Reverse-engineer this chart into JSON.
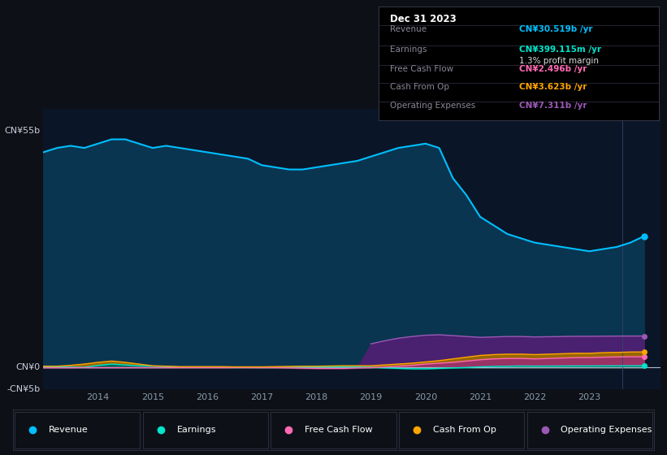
{
  "bg_color": "#0d1117",
  "plot_bg_color": "#0a1628",
  "grid_color": "#1a3050",
  "ylabel_top": "CN¥55b",
  "ylabel_zero": "CN¥0",
  "ylabel_neg": "-CN¥5b",
  "ylim": [
    -5000000000.0,
    60000000000.0
  ],
  "years": [
    2013.0,
    2013.25,
    2013.5,
    2013.75,
    2014.0,
    2014.25,
    2014.5,
    2014.75,
    2015.0,
    2015.25,
    2015.5,
    2015.75,
    2016.0,
    2016.25,
    2016.5,
    2016.75,
    2017.0,
    2017.25,
    2017.5,
    2017.75,
    2018.0,
    2018.25,
    2018.5,
    2018.75,
    2019.0,
    2019.25,
    2019.5,
    2019.75,
    2020.0,
    2020.25,
    2020.5,
    2020.75,
    2021.0,
    2021.25,
    2021.5,
    2021.75,
    2022.0,
    2022.25,
    2022.5,
    2022.75,
    2023.0,
    2023.25,
    2023.5,
    2023.75,
    2024.0
  ],
  "revenue": [
    50000000000.0,
    51000000000.0,
    51500000000.0,
    51000000000.0,
    52000000000.0,
    53000000000.0,
    53000000000.0,
    52000000000.0,
    51000000000.0,
    51500000000.0,
    51000000000.0,
    50500000000.0,
    50000000000.0,
    49500000000.0,
    49000000000.0,
    48500000000.0,
    47000000000.0,
    46500000000.0,
    46000000000.0,
    46000000000.0,
    46500000000.0,
    47000000000.0,
    47500000000.0,
    48000000000.0,
    49000000000.0,
    50000000000.0,
    51000000000.0,
    51500000000.0,
    52000000000.0,
    51000000000.0,
    44000000000.0,
    40000000000.0,
    35000000000.0,
    33000000000.0,
    31000000000.0,
    30000000000.0,
    29000000000.0,
    28500000000.0,
    28000000000.0,
    27500000000.0,
    27000000000.0,
    27500000000.0,
    28000000000.0,
    29000000000.0,
    30500000000.0
  ],
  "earnings": [
    200000000.0,
    150000000.0,
    100000000.0,
    50000000.0,
    500000000.0,
    800000000.0,
    600000000.0,
    400000000.0,
    300000000.0,
    200000000.0,
    100000000.0,
    80000000.0,
    100000000.0,
    100000000.0,
    50000000.0,
    50000000.0,
    50000000.0,
    50000000.0,
    50000000.0,
    100000000.0,
    100000000.0,
    100000000.0,
    100000000.0,
    100000000.0,
    50000000.0,
    -100000000.0,
    -200000000.0,
    -300000000.0,
    -300000000.0,
    -200000000.0,
    -100000000.0,
    0.0,
    150000000.0,
    250000000.0,
    300000000.0,
    350000000.0,
    320000000.0,
    330000000.0,
    350000000.0,
    360000000.0,
    360000000.0,
    380000000.0,
    390000000.0,
    400000000.0,
    400000000.0
  ],
  "free_cash_flow": [
    -50000000.0,
    -50000000.0,
    -50000000.0,
    -30000000.0,
    -30000000.0,
    -30000000.0,
    -30000000.0,
    -30000000.0,
    -30000000.0,
    -30000000.0,
    -30000000.0,
    -30000000.0,
    -30000000.0,
    -30000000.0,
    -30000000.0,
    -30000000.0,
    -50000000.0,
    -50000000.0,
    -100000000.0,
    -150000000.0,
    -200000000.0,
    -200000000.0,
    -200000000.0,
    -100000000.0,
    -50000000.0,
    100000000.0,
    300000000.0,
    500000000.0,
    800000000.0,
    1000000000.0,
    1200000000.0,
    1500000000.0,
    1800000000.0,
    2000000000.0,
    2100000000.0,
    2100000000.0,
    2000000000.0,
    2100000000.0,
    2200000000.0,
    2300000000.0,
    2300000000.0,
    2400000000.0,
    2450000000.0,
    2500000000.0,
    2500000000.0
  ],
  "cash_from_op": [
    300000000.0,
    300000000.0,
    500000000.0,
    800000000.0,
    1200000000.0,
    1500000000.0,
    1200000000.0,
    800000000.0,
    400000000.0,
    300000000.0,
    200000000.0,
    200000000.0,
    200000000.0,
    200000000.0,
    150000000.0,
    150000000.0,
    150000000.0,
    200000000.0,
    250000000.0,
    300000000.0,
    300000000.0,
    350000000.0,
    400000000.0,
    400000000.0,
    400000000.0,
    600000000.0,
    800000000.0,
    1000000000.0,
    1300000000.0,
    1600000000.0,
    2000000000.0,
    2400000000.0,
    2800000000.0,
    3000000000.0,
    3100000000.0,
    3100000000.0,
    3000000000.0,
    3100000000.0,
    3200000000.0,
    3300000000.0,
    3300000000.0,
    3450000000.0,
    3500000000.0,
    3600000000.0,
    3620000000.0
  ],
  "operating_expenses": [
    0.0,
    0.0,
    0.0,
    0.0,
    0.0,
    0.0,
    0.0,
    0.0,
    0.0,
    0.0,
    0.0,
    0.0,
    0.0,
    0.0,
    0.0,
    0.0,
    0.0,
    0.0,
    0.0,
    0.0,
    0.0,
    0.0,
    0.0,
    0.0,
    5500000000.0,
    6200000000.0,
    6800000000.0,
    7200000000.0,
    7500000000.0,
    7600000000.0,
    7400000000.0,
    7200000000.0,
    7000000000.0,
    7100000000.0,
    7200000000.0,
    7200000000.0,
    7100000000.0,
    7150000000.0,
    7200000000.0,
    7250000000.0,
    7250000000.0,
    7280000000.0,
    7300000000.0,
    7310000000.0,
    7310000000.0
  ],
  "revenue_color": "#00bfff",
  "revenue_fill": "#0a3550",
  "earnings_color": "#00e5cc",
  "earnings_fill": "#006655",
  "free_cash_flow_color": "#ff69b4",
  "free_cash_flow_fill": "#993366",
  "cash_from_op_color": "#ffa500",
  "cash_from_op_fill": "#996600",
  "operating_expenses_color": "#9b59b6",
  "operating_expenses_fill": "#4a2070",
  "legend_items": [
    {
      "label": "Revenue",
      "color": "#00bfff"
    },
    {
      "label": "Earnings",
      "color": "#00e5cc"
    },
    {
      "label": "Free Cash Flow",
      "color": "#ff69b4"
    },
    {
      "label": "Cash From Op",
      "color": "#ffa500"
    },
    {
      "label": "Operating Expenses",
      "color": "#9b59b6"
    }
  ],
  "xtick_labels": [
    "2014",
    "2015",
    "2016",
    "2017",
    "2018",
    "2019",
    "2020",
    "2021",
    "2022",
    "2023"
  ],
  "xtick_positions": [
    2014,
    2015,
    2016,
    2017,
    2018,
    2019,
    2020,
    2021,
    2022,
    2023
  ],
  "info_date": "Dec 31 2023",
  "info_rows": [
    {
      "label": "Revenue",
      "value": "CN¥30.519b /yr",
      "value_color": "#00bfff"
    },
    {
      "label": "Earnings",
      "value": "CN¥399.115m /yr",
      "value_color": "#00e5cc"
    },
    {
      "label": "",
      "value": "1.3% profit margin",
      "value_color": "#dddddd"
    },
    {
      "label": "Free Cash Flow",
      "value": "CN¥2.496b /yr",
      "value_color": "#ff69b4"
    },
    {
      "label": "Cash From Op",
      "value": "CN¥3.623b /yr",
      "value_color": "#ffa500"
    },
    {
      "label": "Operating Expenses",
      "value": "CN¥7.311b /yr",
      "value_color": "#9b59b6"
    }
  ]
}
